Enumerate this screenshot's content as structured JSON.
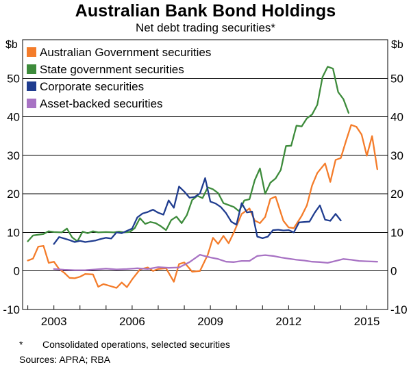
{
  "title": "Australian Bank Bond Holdings",
  "subtitle": "Net debt trading securities*",
  "unit_left": "$b",
  "unit_right": "$b",
  "footnote_marker": "*",
  "footnote": "Consolidated operations, selected securities",
  "sources": "Sources:   APRA; RBA",
  "chart_data": {
    "type": "line",
    "ylim": [
      -10,
      60
    ],
    "yticks": [
      -10,
      0,
      10,
      20,
      30,
      40,
      50
    ],
    "xlim": [
      2001.8,
      2015.8
    ],
    "xticks": [
      2003,
      2006,
      2009,
      2012,
      2015
    ],
    "grid": "horizontal",
    "legend": "top-left",
    "series": [
      {
        "name": "Australian Government securities",
        "color": "#f47c2a",
        "points": [
          [
            2002.0,
            2.7
          ],
          [
            2002.2,
            3.2
          ],
          [
            2002.4,
            6.3
          ],
          [
            2002.6,
            6.5
          ],
          [
            2002.8,
            2.1
          ],
          [
            2003.0,
            2.4
          ],
          [
            2003.2,
            0.5
          ],
          [
            2003.4,
            -0.5
          ],
          [
            2003.6,
            -1.8
          ],
          [
            2003.8,
            -1.9
          ],
          [
            2004.0,
            -1.5
          ],
          [
            2004.2,
            -0.8
          ],
          [
            2004.5,
            -0.9
          ],
          [
            2004.7,
            -4.1
          ],
          [
            2004.9,
            -3.4
          ],
          [
            2005.2,
            -4.0
          ],
          [
            2005.4,
            -4.4
          ],
          [
            2005.6,
            -3.0
          ],
          [
            2005.8,
            -4.2
          ],
          [
            2006.0,
            -2.2
          ],
          [
            2006.3,
            0.4
          ],
          [
            2006.6,
            0.9
          ],
          [
            2006.8,
            0.0
          ],
          [
            2007.0,
            0.5
          ],
          [
            2007.3,
            0.7
          ],
          [
            2007.6,
            -2.8
          ],
          [
            2007.8,
            1.8
          ],
          [
            2008.0,
            2.2
          ],
          [
            2008.3,
            -0.2
          ],
          [
            2008.6,
            0.0
          ],
          [
            2008.9,
            4.2
          ],
          [
            2009.1,
            8.6
          ],
          [
            2009.3,
            7.0
          ],
          [
            2009.5,
            9.1
          ],
          [
            2009.7,
            7.2
          ],
          [
            2009.9,
            10.0
          ],
          [
            2010.2,
            14.8
          ],
          [
            2010.5,
            16.2
          ],
          [
            2010.7,
            13.1
          ],
          [
            2010.9,
            12.4
          ],
          [
            2011.1,
            14.0
          ],
          [
            2011.3,
            18.7
          ],
          [
            2011.5,
            19.3
          ],
          [
            2011.8,
            13.0
          ],
          [
            2012.0,
            11.3
          ],
          [
            2012.2,
            11.1
          ],
          [
            2012.5,
            14.3
          ],
          [
            2012.7,
            17.0
          ],
          [
            2012.9,
            22.2
          ],
          [
            2013.1,
            25.4
          ],
          [
            2013.4,
            27.9
          ],
          [
            2013.6,
            23.1
          ],
          [
            2013.8,
            28.8
          ],
          [
            2014.0,
            29.3
          ],
          [
            2014.2,
            33.7
          ],
          [
            2014.4,
            37.9
          ],
          [
            2014.6,
            37.4
          ],
          [
            2014.8,
            35.4
          ],
          [
            2015.0,
            29.9
          ],
          [
            2015.2,
            35.0
          ],
          [
            2015.4,
            26.4
          ]
        ]
      },
      {
        "name": "State government securities",
        "color": "#3d8b3b",
        "points": [
          [
            2002.0,
            7.7
          ],
          [
            2002.2,
            9.2
          ],
          [
            2002.4,
            9.4
          ],
          [
            2002.6,
            9.6
          ],
          [
            2002.8,
            10.3
          ],
          [
            2003.0,
            10.1
          ],
          [
            2003.3,
            10.0
          ],
          [
            2003.5,
            11.0
          ],
          [
            2003.7,
            8.7
          ],
          [
            2003.9,
            7.7
          ],
          [
            2004.1,
            10.2
          ],
          [
            2004.3,
            9.8
          ],
          [
            2004.5,
            10.3
          ],
          [
            2004.7,
            10.0
          ],
          [
            2005.0,
            10.1
          ],
          [
            2005.3,
            10.0
          ],
          [
            2005.5,
            10.2
          ],
          [
            2005.7,
            10.0
          ],
          [
            2005.9,
            10.1
          ],
          [
            2006.1,
            11.1
          ],
          [
            2006.3,
            13.7
          ],
          [
            2006.5,
            12.2
          ],
          [
            2006.7,
            12.7
          ],
          [
            2006.9,
            12.4
          ],
          [
            2007.1,
            11.6
          ],
          [
            2007.3,
            10.6
          ],
          [
            2007.5,
            13.2
          ],
          [
            2007.7,
            14.1
          ],
          [
            2007.9,
            12.4
          ],
          [
            2008.1,
            14.5
          ],
          [
            2008.3,
            18.4
          ],
          [
            2008.5,
            19.5
          ],
          [
            2008.7,
            18.9
          ],
          [
            2008.9,
            21.7
          ],
          [
            2009.1,
            21.2
          ],
          [
            2009.3,
            20.2
          ],
          [
            2009.5,
            17.6
          ],
          [
            2009.7,
            17.1
          ],
          [
            2009.9,
            16.6
          ],
          [
            2010.1,
            15.5
          ],
          [
            2010.3,
            18.3
          ],
          [
            2010.5,
            18.6
          ],
          [
            2010.7,
            23.5
          ],
          [
            2010.9,
            26.6
          ],
          [
            2011.1,
            20.0
          ],
          [
            2011.3,
            22.9
          ],
          [
            2011.5,
            24.0
          ],
          [
            2011.7,
            26.2
          ],
          [
            2011.9,
            32.4
          ],
          [
            2012.1,
            32.5
          ],
          [
            2012.3,
            37.7
          ],
          [
            2012.5,
            37.5
          ],
          [
            2012.7,
            39.6
          ],
          [
            2012.9,
            40.6
          ],
          [
            2013.1,
            43.1
          ],
          [
            2013.3,
            50.3
          ],
          [
            2013.5,
            53.0
          ],
          [
            2013.7,
            52.5
          ],
          [
            2013.9,
            46.4
          ],
          [
            2014.1,
            44.6
          ],
          [
            2014.3,
            41.0
          ]
        ]
      },
      {
        "name": "Corporate securities",
        "color": "#1f3c8f",
        "points": [
          [
            2003.0,
            7.0
          ],
          [
            2003.2,
            8.8
          ],
          [
            2003.4,
            8.4
          ],
          [
            2003.6,
            8.0
          ],
          [
            2003.8,
            7.5
          ],
          [
            2004.0,
            7.8
          ],
          [
            2004.2,
            7.5
          ],
          [
            2004.4,
            7.7
          ],
          [
            2004.6,
            7.9
          ],
          [
            2004.8,
            8.3
          ],
          [
            2005.0,
            8.6
          ],
          [
            2005.2,
            8.4
          ],
          [
            2005.4,
            10.0
          ],
          [
            2005.6,
            9.8
          ],
          [
            2005.8,
            10.4
          ],
          [
            2006.0,
            11.0
          ],
          [
            2006.2,
            13.9
          ],
          [
            2006.4,
            14.9
          ],
          [
            2006.6,
            15.3
          ],
          [
            2006.8,
            15.9
          ],
          [
            2007.0,
            15.1
          ],
          [
            2007.2,
            14.6
          ],
          [
            2007.4,
            18.3
          ],
          [
            2007.6,
            16.4
          ],
          [
            2007.8,
            21.9
          ],
          [
            2008.0,
            20.6
          ],
          [
            2008.2,
            19.0
          ],
          [
            2008.4,
            19.2
          ],
          [
            2008.6,
            20.1
          ],
          [
            2008.8,
            24.1
          ],
          [
            2009.0,
            18.0
          ],
          [
            2009.2,
            17.5
          ],
          [
            2009.4,
            16.6
          ],
          [
            2009.6,
            15.0
          ],
          [
            2009.8,
            12.8
          ],
          [
            2010.0,
            12.0
          ],
          [
            2010.2,
            17.6
          ],
          [
            2010.4,
            15.2
          ],
          [
            2010.6,
            15.4
          ],
          [
            2010.8,
            8.9
          ],
          [
            2011.0,
            8.5
          ],
          [
            2011.2,
            8.9
          ],
          [
            2011.4,
            10.6
          ],
          [
            2011.6,
            10.7
          ],
          [
            2011.8,
            10.5
          ],
          [
            2012.0,
            10.6
          ],
          [
            2012.2,
            10.0
          ],
          [
            2012.4,
            12.6
          ],
          [
            2012.6,
            12.7
          ],
          [
            2012.8,
            12.8
          ],
          [
            2013.0,
            15.1
          ],
          [
            2013.2,
            17.0
          ],
          [
            2013.4,
            13.3
          ],
          [
            2013.6,
            13.0
          ],
          [
            2013.8,
            14.8
          ],
          [
            2014.0,
            13.1
          ]
        ]
      },
      {
        "name": "Asset-backed securities",
        "color": "#a873c4",
        "points": [
          [
            2003.0,
            0.5
          ],
          [
            2003.4,
            0.3
          ],
          [
            2003.8,
            0.2
          ],
          [
            2004.2,
            0.2
          ],
          [
            2004.6,
            0.4
          ],
          [
            2005.0,
            0.6
          ],
          [
            2005.4,
            0.4
          ],
          [
            2005.8,
            0.5
          ],
          [
            2006.2,
            0.7
          ],
          [
            2006.6,
            0.5
          ],
          [
            2007.0,
            1.0
          ],
          [
            2007.4,
            0.8
          ],
          [
            2007.8,
            0.9
          ],
          [
            2008.2,
            2.3
          ],
          [
            2008.6,
            4.2
          ],
          [
            2009.0,
            3.5
          ],
          [
            2009.3,
            3.1
          ],
          [
            2009.6,
            2.4
          ],
          [
            2009.9,
            2.3
          ],
          [
            2010.2,
            2.6
          ],
          [
            2010.5,
            2.6
          ],
          [
            2010.8,
            3.9
          ],
          [
            2011.1,
            4.1
          ],
          [
            2011.4,
            3.9
          ],
          [
            2011.7,
            3.5
          ],
          [
            2012.0,
            3.2
          ],
          [
            2012.3,
            2.9
          ],
          [
            2012.6,
            2.7
          ],
          [
            2012.9,
            2.4
          ],
          [
            2013.2,
            2.3
          ],
          [
            2013.5,
            2.1
          ],
          [
            2013.8,
            2.6
          ],
          [
            2014.1,
            3.1
          ],
          [
            2014.4,
            2.9
          ],
          [
            2014.7,
            2.6
          ],
          [
            2015.0,
            2.5
          ],
          [
            2015.4,
            2.4
          ]
        ]
      }
    ]
  }
}
